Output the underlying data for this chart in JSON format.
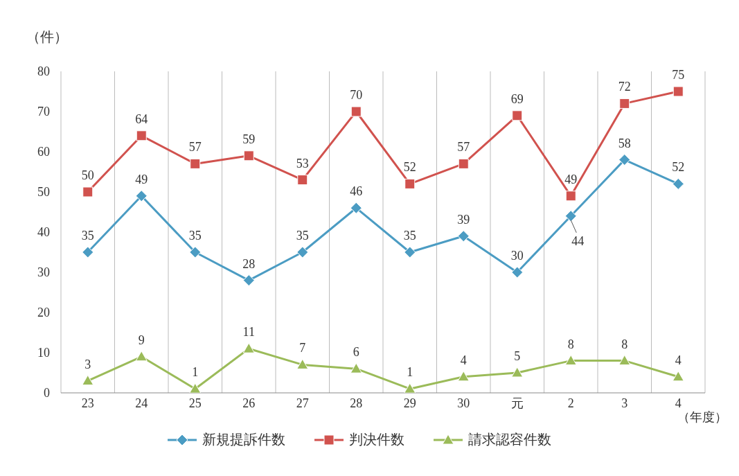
{
  "chart_data": {
    "type": "line",
    "ylabel": "（件）",
    "xlabel": "（年度）",
    "categories": [
      "23",
      "24",
      "25",
      "26",
      "27",
      "28",
      "29",
      "30",
      "元",
      "2",
      "3",
      "4"
    ],
    "series": [
      {
        "name": "新規提訴件数",
        "color": "#4b9cc3",
        "marker": "diamond",
        "values": [
          35,
          49,
          35,
          28,
          35,
          46,
          35,
          39,
          30,
          44,
          58,
          52
        ]
      },
      {
        "name": "判決件数",
        "color": "#d1524e",
        "marker": "square",
        "values": [
          50,
          64,
          57,
          59,
          53,
          70,
          52,
          57,
          69,
          49,
          72,
          75
        ]
      },
      {
        "name": "請求認容件数",
        "color": "#9bbb59",
        "marker": "triangle",
        "values": [
          3,
          9,
          1,
          11,
          7,
          6,
          1,
          4,
          5,
          8,
          8,
          4
        ]
      }
    ],
    "ylim": [
      0,
      80
    ],
    "yticks": [
      0,
      10,
      20,
      30,
      40,
      50,
      60,
      70,
      80
    ],
    "grid": "x",
    "legend": "bottom",
    "data_labels": true
  }
}
